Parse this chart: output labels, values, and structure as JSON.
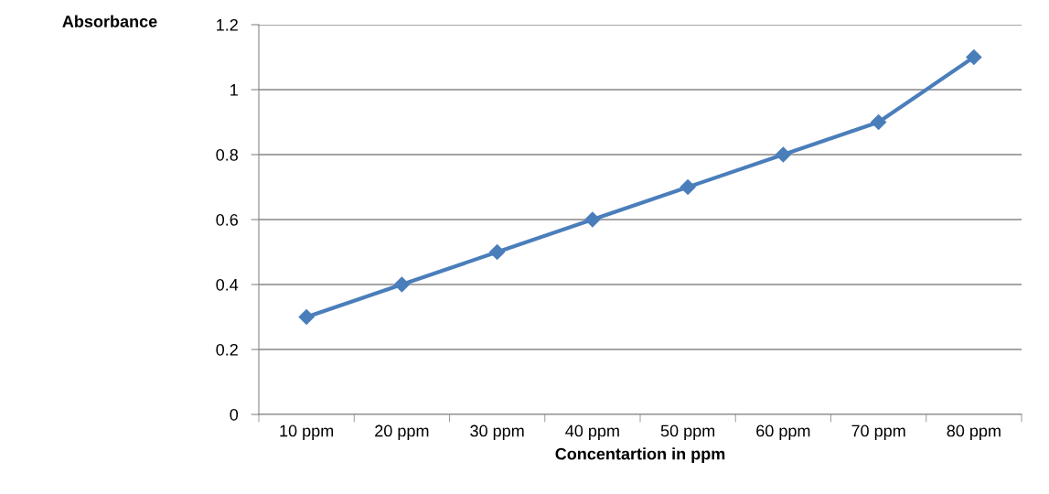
{
  "chart_data": {
    "type": "line",
    "ylabel": "Absorbance",
    "xlabel": "Concentartion in ppm",
    "categories": [
      "10 ppm",
      "20 ppm",
      "30 ppm",
      "40 ppm",
      "50 ppm",
      "60 ppm",
      "70 ppm",
      "80 ppm"
    ],
    "series": [
      {
        "color": "#4a7ebb",
        "values": [
          0.3,
          0.4,
          0.5,
          0.6,
          0.7,
          0.8,
          0.9,
          1.1
        ]
      }
    ],
    "ylim": [
      0,
      1.2
    ],
    "yticks": [
      0,
      0.2,
      0.4,
      0.6,
      0.8,
      1,
      1.2
    ],
    "grid": "y",
    "marker": "diamond",
    "line_style": "solid"
  }
}
